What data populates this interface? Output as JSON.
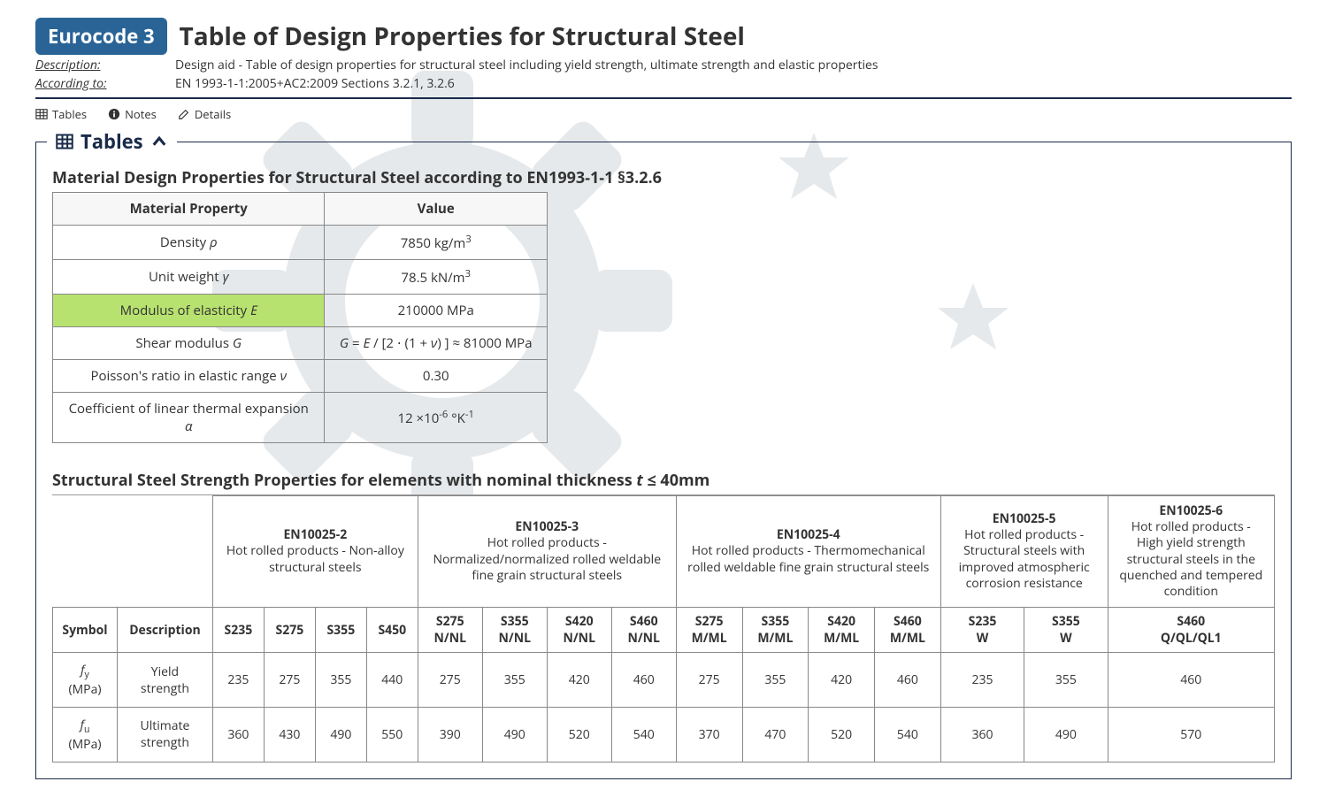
{
  "header": {
    "badge": "Eurocode 3",
    "title": "Table of Design Properties for Structural Steel",
    "desc_label": "Description:",
    "desc_value": "Design aid - Table of design properties for structural steel including yield strength, ultimate strength and elastic properties",
    "ref_label": "According to:",
    "ref_value": "EN 1993-1-1:2005+AC2:2009 Sections 3.2.1, 3.2.6"
  },
  "tabs": {
    "tables": "Tables",
    "notes": "Notes",
    "details": "Details"
  },
  "section": {
    "legend": "Tables"
  },
  "material_table": {
    "heading": "Material Design Properties for Structural Steel according to EN1993-1-1 §3.2.6",
    "col_property": "Material Property",
    "col_value": "Value",
    "rows": [
      {
        "prop_html": "Density <span class='ital'>ρ</span>",
        "value_html": "7850 kg/m<sup>3</sup>",
        "highlight": false
      },
      {
        "prop_html": "Unit weight <span class='ital'>γ</span>",
        "value_html": "78.5 kN/m<sup>3</sup>",
        "highlight": false
      },
      {
        "prop_html": "Modulus of elasticity <span class='ital'>E</span>",
        "value_html": "210000 MPa",
        "highlight": true
      },
      {
        "prop_html": "Shear modulus <span class='ital'>G</span>",
        "value_html": "<span class='ital'>G</span> = <span class='ital'>E</span> / [2 ⋅ (1 + <span class='ital'>ν</span>) ] ≈ 81000 MPa",
        "highlight": false
      },
      {
        "prop_html": "Poisson's ratio in elastic range <span class='ital'>ν</span>",
        "value_html": "0.30",
        "highlight": false
      },
      {
        "prop_html": "Coefficient of linear thermal expansion <span class='ital'>α</span>",
        "value_html": "12 ×10<sup>-6</sup> °K<sup>-1</sup>",
        "highlight": false
      }
    ]
  },
  "strength_table": {
    "heading_html": "Structural Steel Strength Properties for elements with nominal thickness <span class='ital'>t</span> ≤ 40mm",
    "col_symbol": "Symbol",
    "col_desc": "Description",
    "groups": [
      {
        "title": "EN10025-2",
        "sub": "Hot rolled products - Non-alloy structural steels",
        "cols": [
          "S235",
          "S275",
          "S355",
          "S450"
        ]
      },
      {
        "title": "EN10025-3",
        "sub": "Hot rolled products - Normalized/normalized rolled weldable fine grain structural steels",
        "cols": [
          "S275 N/NL",
          "S355 N/NL",
          "S420 N/NL",
          "S460 N/NL"
        ]
      },
      {
        "title": "EN10025-4",
        "sub": "Hot rolled products - Thermomechanical rolled weldable fine grain structural steels",
        "cols": [
          "S275 M/ML",
          "S355 M/ML",
          "S420 M/ML",
          "S460 M/ML"
        ]
      },
      {
        "title": "EN10025-5",
        "sub": "Hot rolled products - Structural steels with improved atmospheric corrosion resistance",
        "cols": [
          "S235 W",
          "S355 W"
        ]
      },
      {
        "title": "EN10025-6",
        "sub": "Hot rolled products - High yield strength structural steels in the quenched and tempered condition",
        "cols": [
          "S460 Q/QL/QL1"
        ]
      }
    ],
    "rows": [
      {
        "symbol_html": "<span class='ital'>f</span><sub>y</sub> (MPa)",
        "desc": "Yield strength",
        "values": [
          235,
          275,
          355,
          440,
          275,
          355,
          420,
          460,
          275,
          355,
          420,
          460,
          235,
          355,
          460
        ]
      },
      {
        "symbol_html": "<span class='ital'>f</span><sub>u</sub> (MPa)",
        "desc": "Ultimate strength",
        "values": [
          360,
          430,
          490,
          550,
          390,
          490,
          520,
          540,
          370,
          470,
          520,
          540,
          360,
          490,
          570
        ]
      }
    ]
  },
  "colors": {
    "badge_bg": "#2a6496",
    "primary_dark": "#1a2b4a",
    "highlight": "#b8e26f",
    "watermark": "#4a5a6a"
  }
}
